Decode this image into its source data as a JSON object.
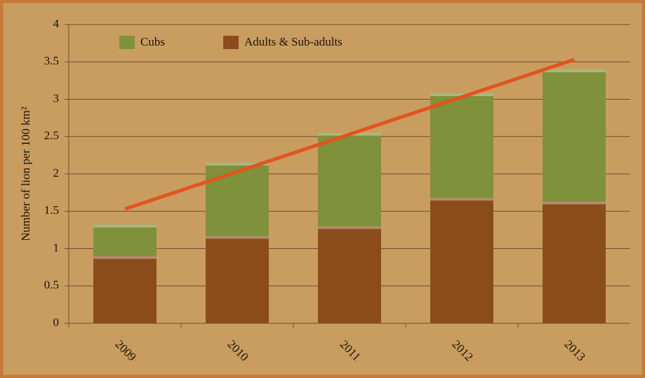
{
  "chart_data": {
    "type": "stacked_bar",
    "y_label": "Number of lion per 100 km²",
    "categories": [
      "2009",
      "2010",
      "2011",
      "2012",
      "2013"
    ],
    "series": [
      {
        "name": "Adults & Sub-adults",
        "color": "#8b4c1c",
        "values": [
          0.9,
          1.17,
          1.3,
          1.68,
          1.63
        ]
      },
      {
        "name": "Cubs",
        "color": "#7f913a",
        "values": [
          0.42,
          0.98,
          1.25,
          1.4,
          1.77
        ]
      }
    ],
    "trend_line": {
      "color": "#e2541f",
      "values": [
        1.53,
        2.03,
        2.53,
        3.03,
        3.53
      ]
    },
    "ylim": [
      0,
      4
    ],
    "yticks": [
      0,
      0.5,
      1,
      1.5,
      2,
      2.5,
      3,
      3.5,
      4
    ],
    "grid": true
  }
}
